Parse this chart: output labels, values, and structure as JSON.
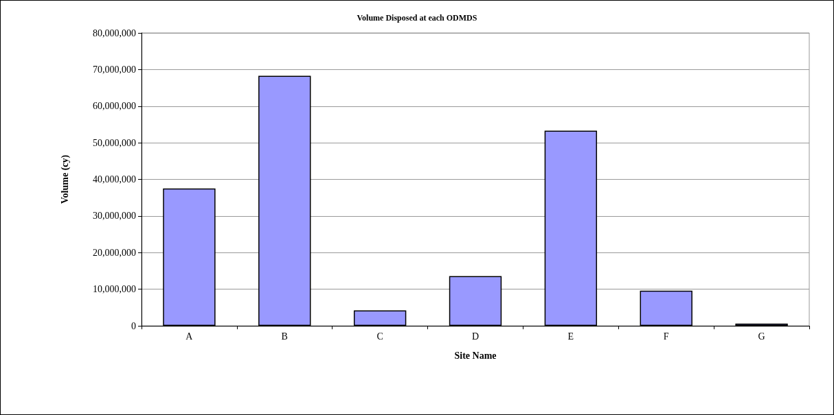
{
  "chart_data": {
    "type": "bar",
    "title": "Volume Disposed at each ODMDS",
    "xlabel": "Site Name",
    "ylabel": "Volume (cy)",
    "categories": [
      "A",
      "B",
      "C",
      "D",
      "E",
      "F",
      "G"
    ],
    "values": [
      37500000,
      68300000,
      4200000,
      13600000,
      53300000,
      9600000,
      600000
    ],
    "color": "#9999ff",
    "ylim": [
      0,
      80000000
    ],
    "yticks": [
      0,
      {
        "value": 10000000,
        "label": "10,000,000"
      },
      {
        "value": 20000000,
        "label": "20,000,000"
      },
      {
        "value": 30000000,
        "label": "30,000,000"
      },
      {
        "value": 40000000,
        "label": "40,000,000"
      },
      {
        "value": 50000000,
        "label": "50,000,000"
      },
      {
        "value": 60000000,
        "label": "60,000,000"
      },
      {
        "value": 70000000,
        "label": "70,000,000"
      },
      {
        "value": 80000000,
        "label": "80,000,000"
      }
    ],
    "grid": "y"
  }
}
